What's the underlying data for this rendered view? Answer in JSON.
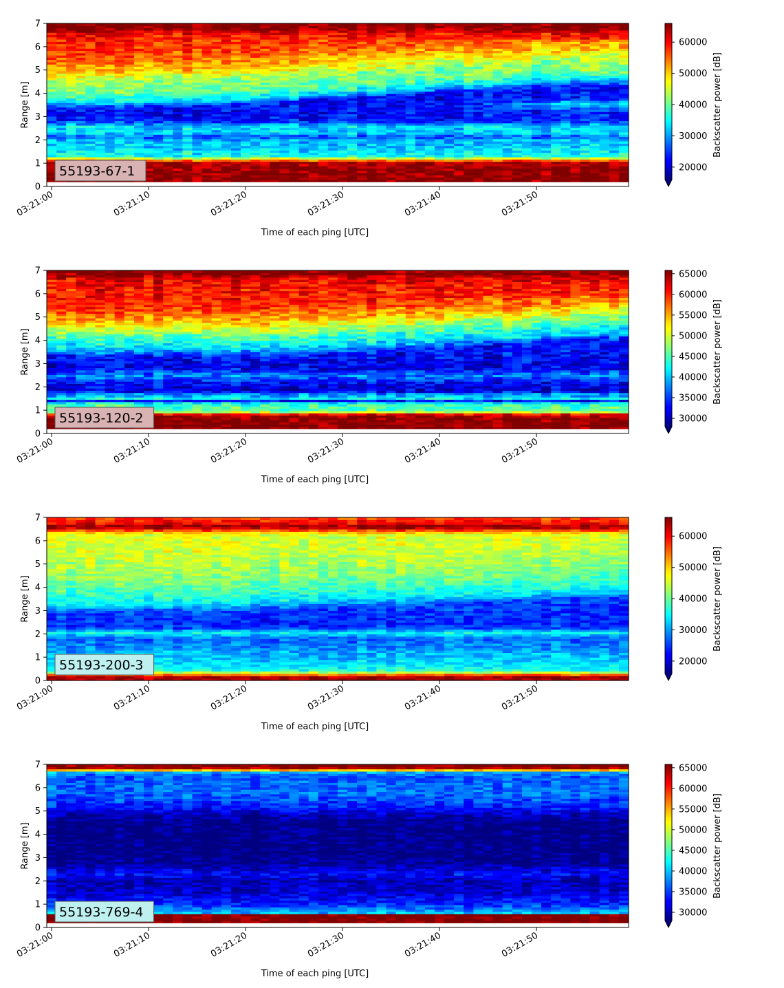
{
  "figure": {
    "panels": [
      {
        "id": "55193-67-1",
        "cbar_ticks": [
          "20000",
          "30000",
          "40000",
          "50000",
          "60000"
        ]
      },
      {
        "id": "55193-120-2",
        "cbar_ticks": [
          "30000",
          "35000",
          "40000",
          "45000",
          "50000",
          "55000",
          "60000",
          "65000"
        ]
      },
      {
        "id": "55193-200-3",
        "cbar_ticks": [
          "20000",
          "30000",
          "40000",
          "50000",
          "60000"
        ]
      },
      {
        "id": "55193-769-4",
        "cbar_ticks": [
          "30000",
          "35000",
          "40000",
          "45000",
          "50000",
          "55000",
          "60000",
          "65000"
        ]
      }
    ]
  },
  "chart_data": [
    {
      "type": "heatmap",
      "label": "55193-67-1",
      "label_box_color": "#d9b3b3",
      "xlabel": "Time of each ping [UTC]",
      "ylabel": "Range [m]",
      "x_ticks": [
        "03:21:00",
        "03:21:10",
        "03:21:20",
        "03:21:30",
        "03:21:40",
        "03:21:50"
      ],
      "x_range_s": [
        -0.5,
        59.5
      ],
      "y_ticks": [
        0,
        1,
        2,
        3,
        4,
        5,
        6,
        7
      ],
      "ylim": [
        0,
        7
      ],
      "colorbar_label": "Backscatter power [dB]",
      "colormap": "jet",
      "colorbar_extend": "min",
      "vmin": 16000,
      "vmax": 66000,
      "colorbar_ticks": [
        20000,
        30000,
        40000,
        50000,
        60000
      ],
      "data_extent_m": [
        0.2,
        7.0
      ],
      "profile": [
        [
          0.0,
          66000
        ],
        [
          0.25,
          66000
        ],
        [
          1.05,
          64000
        ],
        [
          1.15,
          52000
        ],
        [
          1.3,
          36000
        ],
        [
          1.6,
          33000
        ],
        [
          2.0,
          31000
        ],
        [
          2.15,
          26000
        ],
        [
          2.3,
          32000
        ],
        [
          2.6,
          33000
        ],
        [
          2.8,
          24000
        ],
        [
          3.1,
          22000
        ],
        [
          3.4,
          23000
        ],
        [
          3.6,
          32000
        ],
        [
          4.0,
          40000
        ],
        [
          4.5,
          42000
        ],
        [
          5.0,
          50000
        ],
        [
          5.6,
          56000
        ],
        [
          6.3,
          58000
        ],
        [
          6.6,
          60000
        ],
        [
          6.8,
          66000
        ],
        [
          7.0,
          66000
        ]
      ],
      "drift": {
        "t0": 0.25,
        "t1": 0.9,
        "from_m": 3.35,
        "to_m": 4.3
      },
      "noise": 5500
    },
    {
      "type": "heatmap",
      "label": "55193-120-2",
      "label_box_color": "#d9b3b3",
      "xlabel": "Time of each ping [UTC]",
      "ylabel": "Range [m]",
      "x_ticks": [
        "03:21:00",
        "03:21:10",
        "03:21:20",
        "03:21:30",
        "03:21:40",
        "03:21:50"
      ],
      "x_range_s": [
        -0.5,
        59.5
      ],
      "y_ticks": [
        0,
        1,
        2,
        3,
        4,
        5,
        6,
        7
      ],
      "ylim": [
        0,
        7
      ],
      "colorbar_label": "Backscatter power [dB]",
      "colormap": "jet",
      "colorbar_extend": "min",
      "vmin": 28000,
      "vmax": 65800,
      "colorbar_ticks": [
        30000,
        35000,
        40000,
        45000,
        50000,
        55000,
        60000,
        65000
      ],
      "data_extent_m": [
        0.2,
        7.0
      ],
      "profile": [
        [
          0.0,
          66000
        ],
        [
          0.7,
          66000
        ],
        [
          0.85,
          60000
        ],
        [
          0.95,
          46000
        ],
        [
          1.3,
          44000
        ],
        [
          1.4,
          32000
        ],
        [
          1.5,
          42000
        ],
        [
          1.7,
          38000
        ],
        [
          1.85,
          31000
        ],
        [
          2.2,
          33000
        ],
        [
          2.5,
          38000
        ],
        [
          2.8,
          32000
        ],
        [
          3.3,
          33000
        ],
        [
          3.6,
          40000
        ],
        [
          4.2,
          46000
        ],
        [
          4.8,
          54000
        ],
        [
          5.5,
          60000
        ],
        [
          6.4,
          61000
        ],
        [
          6.7,
          62000
        ],
        [
          6.85,
          66000
        ],
        [
          7.0,
          66000
        ]
      ],
      "drift": {
        "t0": 0.4,
        "t1": 0.95,
        "from_m": 3.5,
        "to_m": 4.2
      },
      "noise": 4500
    },
    {
      "type": "heatmap",
      "label": "55193-200-3",
      "label_box_color": "#bff0f0",
      "xlabel": "Time of each ping [UTC]",
      "ylabel": "Range [m]",
      "x_ticks": [
        "03:21:00",
        "03:21:10",
        "03:21:20",
        "03:21:30",
        "03:21:40",
        "03:21:50"
      ],
      "x_range_s": [
        -0.5,
        59.5
      ],
      "y_ticks": [
        0,
        1,
        2,
        3,
        4,
        5,
        6,
        7
      ],
      "ylim": [
        0,
        7
      ],
      "colorbar_label": "Backscatter power [dB]",
      "colormap": "jet",
      "colorbar_extend": "min",
      "vmin": 16000,
      "vmax": 66000,
      "colorbar_ticks": [
        20000,
        30000,
        40000,
        50000,
        60000
      ],
      "data_extent_m": [
        0.0,
        7.0
      ],
      "profile": [
        [
          0.0,
          62000
        ],
        [
          0.1,
          66000
        ],
        [
          0.2,
          62000
        ],
        [
          0.3,
          48000
        ],
        [
          0.45,
          36000
        ],
        [
          0.8,
          33000
        ],
        [
          1.3,
          30000
        ],
        [
          1.8,
          27000
        ],
        [
          2.1,
          36000
        ],
        [
          2.2,
          25000
        ],
        [
          2.6,
          24000
        ],
        [
          3.0,
          26000
        ],
        [
          3.3,
          34000
        ],
        [
          3.8,
          38000
        ],
        [
          4.5,
          42000
        ],
        [
          5.5,
          45000
        ],
        [
          6.3,
          46000
        ],
        [
          6.45,
          56000
        ],
        [
          6.6,
          66000
        ],
        [
          6.75,
          60000
        ],
        [
          7.0,
          56000
        ]
      ],
      "drift": {
        "t0": 0.3,
        "t1": 1.0,
        "from_m": 3.0,
        "to_m": 3.6
      },
      "noise": 4500
    },
    {
      "type": "heatmap",
      "label": "55193-769-4",
      "label_box_color": "#bff0f0",
      "xlabel": "Time of each ping [UTC]",
      "ylabel": "Range [m]",
      "x_ticks": [
        "03:21:00",
        "03:21:10",
        "03:21:20",
        "03:21:30",
        "03:21:40",
        "03:21:50"
      ],
      "x_range_s": [
        -0.5,
        59.5
      ],
      "y_ticks": [
        0,
        1,
        2,
        3,
        4,
        5,
        6,
        7
      ],
      "ylim": [
        0,
        7
      ],
      "colorbar_label": "Backscatter power [dB]",
      "colormap": "jet",
      "colorbar_extend": "min",
      "vmin": 28000,
      "vmax": 65800,
      "colorbar_ticks": [
        30000,
        35000,
        40000,
        45000,
        50000,
        55000,
        60000,
        65000
      ],
      "data_extent_m": [
        0.2,
        7.0
      ],
      "profile": [
        [
          0.0,
          66000
        ],
        [
          0.55,
          66000
        ],
        [
          0.62,
          40000
        ],
        [
          0.75,
          38000
        ],
        [
          1.0,
          34000
        ],
        [
          1.5,
          31000
        ],
        [
          2.0,
          30000
        ],
        [
          2.3,
          33000
        ],
        [
          2.55,
          31000
        ],
        [
          2.75,
          28500
        ],
        [
          3.5,
          28000
        ],
        [
          4.5,
          28000
        ],
        [
          4.8,
          30000
        ],
        [
          5.2,
          34000
        ],
        [
          5.8,
          37000
        ],
        [
          6.5,
          36000
        ],
        [
          6.7,
          40000
        ],
        [
          6.8,
          64000
        ],
        [
          7.0,
          66000
        ]
      ],
      "drift": {
        "t0": 0.0,
        "t1": 1.0,
        "from_m": 2.5,
        "to_m": 2.5
      },
      "noise": 3500
    }
  ]
}
